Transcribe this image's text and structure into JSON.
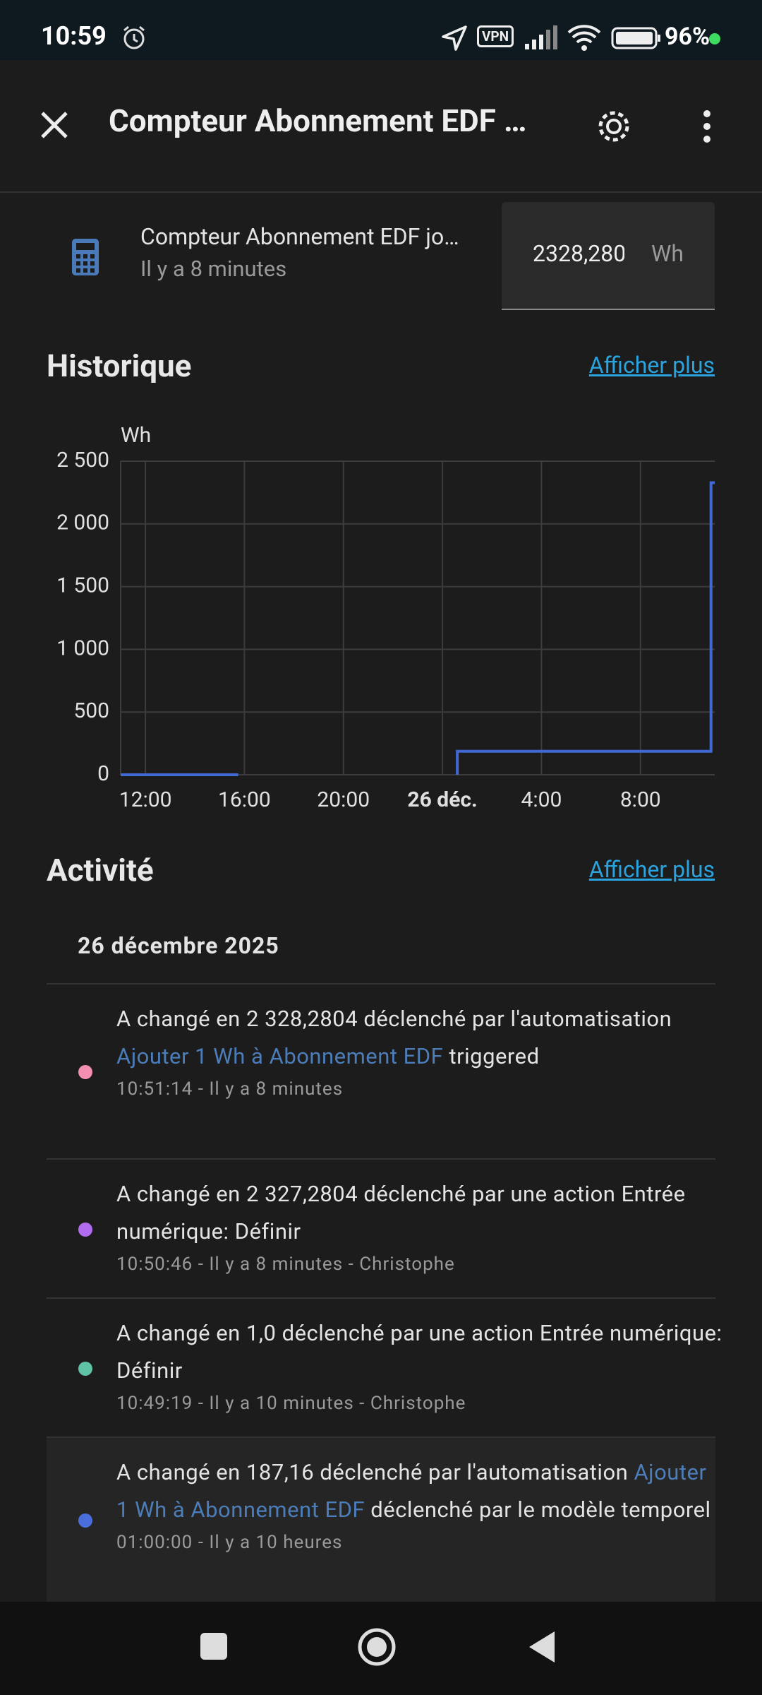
{
  "status_bar": {
    "time": "10:59",
    "vpn": "VPN",
    "battery": "96%"
  },
  "header": {
    "title": "Compteur Abonnement EDF …"
  },
  "entity": {
    "name": "Compteur Abonnement EDF jo…",
    "subtitle": "Il y a 8 minutes",
    "value": "2328,280",
    "unit": "Wh"
  },
  "history": {
    "title": "Historique",
    "more": "Afficher plus"
  },
  "chart_data": {
    "type": "line",
    "y_label": "Wh",
    "x": [
      11,
      15.75,
      20,
      24.6,
      24.6,
      34.85,
      34.85,
      35
    ],
    "series": [
      {
        "name": "Compteur Abonnement EDF",
        "color": "#4169d4",
        "values": [
          0,
          0,
          null,
          0,
          187.16,
          187.16,
          2328.28,
          2328.28
        ]
      }
    ],
    "xlim": [
      11,
      35
    ],
    "xticks": [
      {
        "value": 12,
        "label": "12:00"
      },
      {
        "value": 16,
        "label": "16:00"
      },
      {
        "value": 20,
        "label": "20:00"
      },
      {
        "value": 24,
        "label": "26 déc.",
        "bold": true
      },
      {
        "value": 28,
        "label": "4:00"
      },
      {
        "value": 32,
        "label": "8:00"
      }
    ],
    "ylim": [
      0,
      2500
    ],
    "yticks": [
      0,
      500,
      {
        "value": 1000,
        "label": "1 000"
      },
      {
        "value": 1500,
        "label": "1 500"
      },
      {
        "value": 2000,
        "label": "2 000"
      },
      {
        "value": 2500,
        "label": "2 500"
      }
    ],
    "grid": true
  },
  "activity": {
    "title": "Activité",
    "more": "Afficher plus",
    "date": "26 décembre 2025",
    "items": [
      {
        "text": "A changé en 2 328,2804 déclenché par l'automatisation ",
        "link": "Ajouter 1 Wh à Abonnement EDF",
        "suffix": " triggered",
        "meta": "10:51:14 - Il y a 8 minutes"
      },
      {
        "text": "A changé en 2 327,2804 déclenché par une action Entrée numérique: Définir",
        "meta": "10:50:46 - Il y a 8 minutes - Christophe"
      },
      {
        "text": "A changé en 1,0 déclenché par une action Entrée numérique: Définir",
        "meta": "10:49:19 - Il y a 10 minutes - Christophe"
      },
      {
        "text": "A changé en 187,16 déclenché par l'automatisation ",
        "link": "Ajouter 1 Wh à Abonnement EDF",
        "suffix": " déclenché par le modèle temporel",
        "meta": "01:00:00 - Il y a 10 heures"
      }
    ]
  }
}
